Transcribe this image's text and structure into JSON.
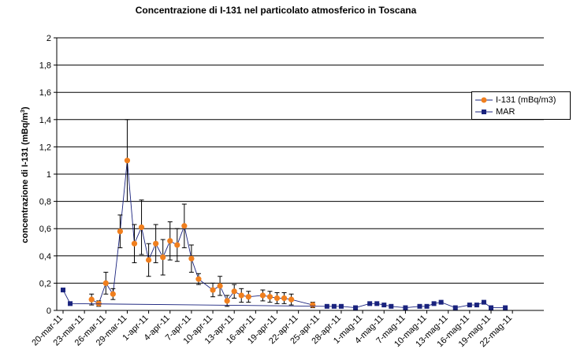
{
  "chart_data": {
    "type": "line",
    "title": "Concentrazione di I-131 nel particolato atmosferico in Toscana",
    "ylabel": "concentrazione di I-131 (mBq/m",
    "ylabel_sup": "3",
    "ylabel_close": ")",
    "ylim": [
      0,
      2
    ],
    "yticks": [
      "0",
      "0,2",
      "0,4",
      "0,6",
      "0,8",
      "1",
      "1,2",
      "1,4",
      "1,6",
      "1,8",
      "2"
    ],
    "xticks": [
      {
        "day": 0,
        "label": "20-mar-11"
      },
      {
        "day": 3,
        "label": "23-mar-11"
      },
      {
        "day": 6,
        "label": "26-mar-11"
      },
      {
        "day": 9,
        "label": "29-mar-11"
      },
      {
        "day": 12,
        "label": "1-apr-11"
      },
      {
        "day": 15,
        "label": "4-apr-11"
      },
      {
        "day": 18,
        "label": "7-apr-11"
      },
      {
        "day": 21,
        "label": "10-apr-11"
      },
      {
        "day": 24,
        "label": "13-apr-11"
      },
      {
        "day": 27,
        "label": "16-apr-11"
      },
      {
        "day": 30,
        "label": "19-apr-11"
      },
      {
        "day": 33,
        "label": "22-apr-11"
      },
      {
        "day": 36,
        "label": "25-apr-11"
      },
      {
        "day": 39,
        "label": "28-apr-11"
      },
      {
        "day": 42,
        "label": "1-mag-11"
      },
      {
        "day": 45,
        "label": "4-mag-11"
      },
      {
        "day": 48,
        "label": "7-mag-11"
      },
      {
        "day": 51,
        "label": "10-mag-11"
      },
      {
        "day": 54,
        "label": "13-mag-11"
      },
      {
        "day": 57,
        "label": "16-mag-11"
      },
      {
        "day": 60,
        "label": "19-mag-11"
      },
      {
        "day": 63,
        "label": "22-mag-11"
      }
    ],
    "grid": true,
    "legend_position": "right",
    "series": [
      {
        "name": "I-131 (mBq/m3)",
        "color": "#f07f1e",
        "marker": "circle",
        "points": [
          {
            "x": "24-mar-11",
            "y": 0.08,
            "err": 0.04
          },
          {
            "x": "25-mar-11",
            "y": 0.05,
            "err": 0.02
          },
          {
            "x": "26-mar-11",
            "y": 0.2,
            "err": 0.08
          },
          {
            "x": "27-mar-11",
            "y": 0.12,
            "err": 0.04
          },
          {
            "x": "28-mar-11",
            "y": 0.58,
            "err": 0.12
          },
          {
            "x": "29-mar-11",
            "y": 1.1,
            "err": 0.3
          },
          {
            "x": "30-mar-11",
            "y": 0.49,
            "err": 0.14
          },
          {
            "x": "31-mar-11",
            "y": 0.61,
            "err": 0.2
          },
          {
            "x": "1-apr-11",
            "y": 0.37,
            "err": 0.12
          },
          {
            "x": "2-apr-11",
            "y": 0.49,
            "err": 0.14
          },
          {
            "x": "3-apr-11",
            "y": 0.39,
            "err": 0.13
          },
          {
            "x": "4-apr-11",
            "y": 0.51,
            "err": 0.14
          },
          {
            "x": "5-apr-11",
            "y": 0.48,
            "err": 0.12
          },
          {
            "x": "6-apr-11",
            "y": 0.62,
            "err": 0.16
          },
          {
            "x": "7-apr-11",
            "y": 0.38,
            "err": 0.1
          },
          {
            "x": "8-apr-11",
            "y": 0.23,
            "err": 0.04
          },
          {
            "x": "10-apr-11",
            "y": 0.15,
            "err": 0.05
          },
          {
            "x": "11-apr-11",
            "y": 0.18,
            "err": 0.07
          },
          {
            "x": "12-apr-11",
            "y": 0.07,
            "err": 0.04
          },
          {
            "x": "13-apr-11",
            "y": 0.14,
            "err": 0.05
          },
          {
            "x": "14-apr-11",
            "y": 0.11,
            "err": 0.05
          },
          {
            "x": "15-apr-11",
            "y": 0.1,
            "err": 0.04
          },
          {
            "x": "17-apr-11",
            "y": 0.11,
            "err": 0.04
          },
          {
            "x": "18-apr-11",
            "y": 0.1,
            "err": 0.04
          },
          {
            "x": "19-apr-11",
            "y": 0.09,
            "err": 0.04
          },
          {
            "x": "20-apr-11",
            "y": 0.09,
            "err": 0.04
          },
          {
            "x": "21-apr-11",
            "y": 0.08,
            "err": 0.04
          },
          {
            "x": "24-apr-11",
            "y": 0.04,
            "err": 0.02
          }
        ]
      },
      {
        "name": "MAR",
        "color": "#1a237e",
        "marker": "square",
        "points": [
          {
            "x": "20-mar-11",
            "y": 0.15
          },
          {
            "x": "21-mar-11",
            "y": 0.05
          },
          {
            "x": "26-apr-11",
            "y": 0.03
          },
          {
            "x": "27-apr-11",
            "y": 0.03
          },
          {
            "x": "28-apr-11",
            "y": 0.03
          },
          {
            "x": "30-apr-11",
            "y": 0.02
          },
          {
            "x": "2-mag-11",
            "y": 0.05
          },
          {
            "x": "3-mag-11",
            "y": 0.05
          },
          {
            "x": "4-mag-11",
            "y": 0.04
          },
          {
            "x": "5-mag-11",
            "y": 0.03
          },
          {
            "x": "7-mag-11",
            "y": 0.02
          },
          {
            "x": "9-mag-11",
            "y": 0.03
          },
          {
            "x": "10-mag-11",
            "y": 0.03
          },
          {
            "x": "11-mag-11",
            "y": 0.05
          },
          {
            "x": "12-mag-11",
            "y": 0.06
          },
          {
            "x": "14-mag-11",
            "y": 0.02
          },
          {
            "x": "16-mag-11",
            "y": 0.04
          },
          {
            "x": "17-mag-11",
            "y": 0.04
          },
          {
            "x": "18-mag-11",
            "y": 0.06
          },
          {
            "x": "19-mag-11",
            "y": 0.02
          },
          {
            "x": "21-mag-11",
            "y": 0.02
          }
        ]
      }
    ]
  }
}
